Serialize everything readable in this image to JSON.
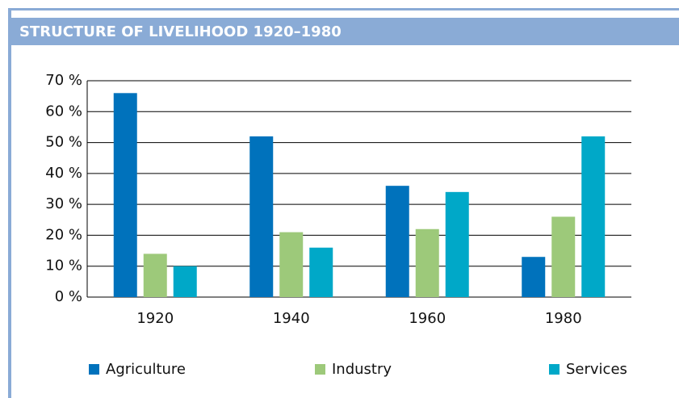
{
  "chart_data": {
    "type": "bar",
    "title": "STRUCTURE OF LIVELIHOOD 1920–1980",
    "categories": [
      "1920",
      "1940",
      "1960",
      "1980"
    ],
    "series": [
      {
        "name": "Agriculture",
        "color": "#0072bc",
        "values": [
          66,
          52,
          36,
          13
        ]
      },
      {
        "name": "Industry",
        "color": "#9dc97a",
        "values": [
          14,
          21,
          22,
          26
        ]
      },
      {
        "name": "Services",
        "color": "#00a8c8",
        "values": [
          10,
          16,
          34,
          52
        ]
      }
    ],
    "ylim": [
      0,
      70
    ],
    "yticks": [
      {
        "value": 0,
        "label": "0 %"
      },
      {
        "value": 10,
        "label": "10 %"
      },
      {
        "value": 20,
        "label": "20 %"
      },
      {
        "value": 30,
        "label": "30 %"
      },
      {
        "value": 40,
        "label": "40 %"
      },
      {
        "value": 50,
        "label": "50 %"
      },
      {
        "value": 60,
        "label": "60 %"
      },
      {
        "value": 70,
        "label": "70 %"
      }
    ],
    "grid": true,
    "legend": "bottom"
  }
}
